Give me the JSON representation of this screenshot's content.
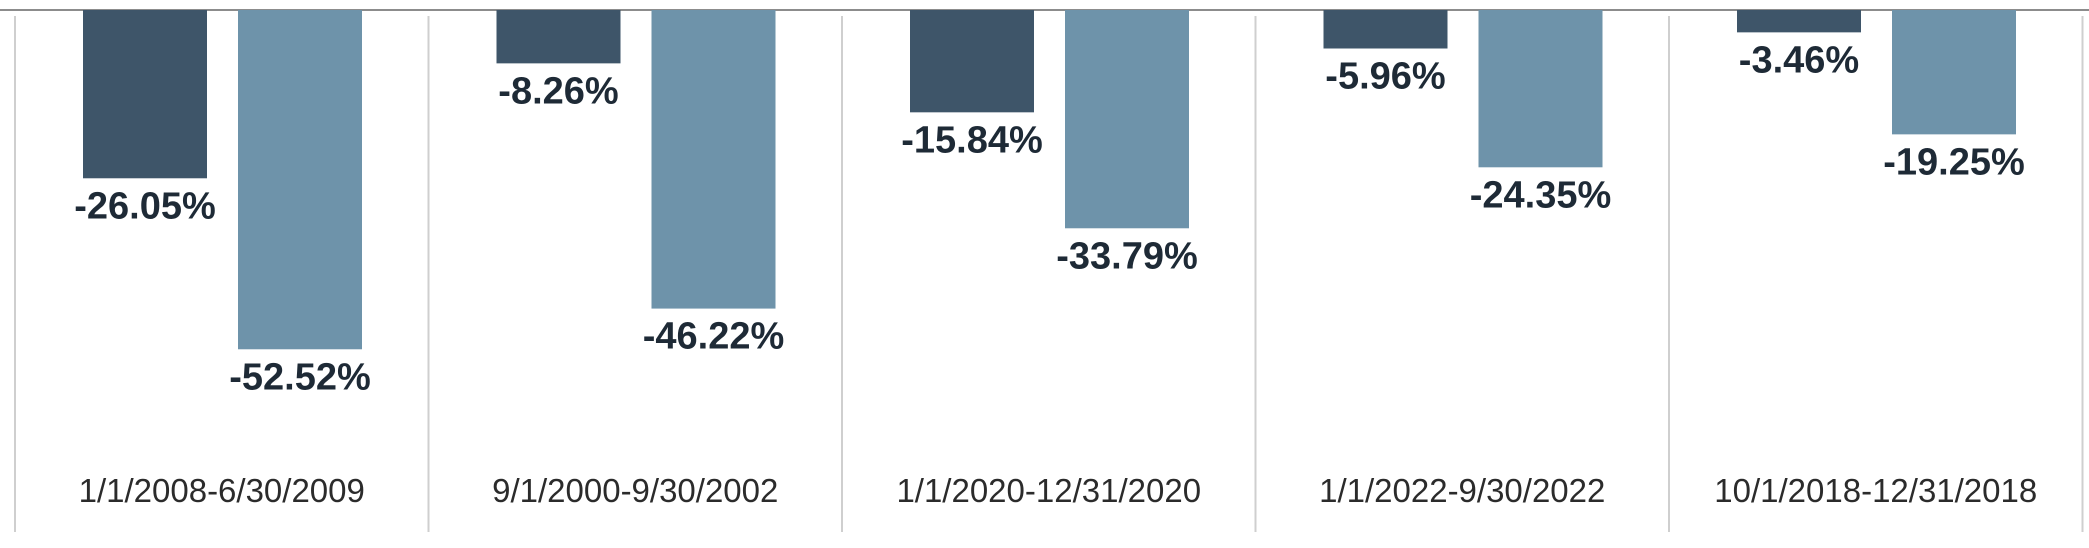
{
  "chart_data": {
    "type": "bar",
    "categories": [
      "1/1/2008-6/30/2009",
      "9/1/2000-9/30/2002",
      "1/1/2020-12/31/2020",
      "1/1/2022-9/30/2022",
      "10/1/2018-12/31/2018"
    ],
    "series": [
      {
        "values": [
          -26.05,
          -8.26,
          -15.84,
          -5.96,
          -3.46
        ],
        "labels": [
          "-26.05%",
          "-8.26%",
          "-15.84%",
          "-5.96%",
          "-3.46%"
        ],
        "color": "#3e5569"
      },
      {
        "values": [
          -52.52,
          -46.22,
          -33.79,
          -24.35,
          -19.25
        ],
        "labels": [
          "-52.52%",
          "-46.22%",
          "-33.79%",
          "-24.35%",
          "-19.25%"
        ],
        "color": "#6e93aa"
      }
    ],
    "value_unit": "%",
    "ylim": [
      -70,
      0
    ],
    "grid": false,
    "legend": "none",
    "colors": {
      "axis_line": "#8c8c8c",
      "separator": "#cfcfcf"
    }
  }
}
